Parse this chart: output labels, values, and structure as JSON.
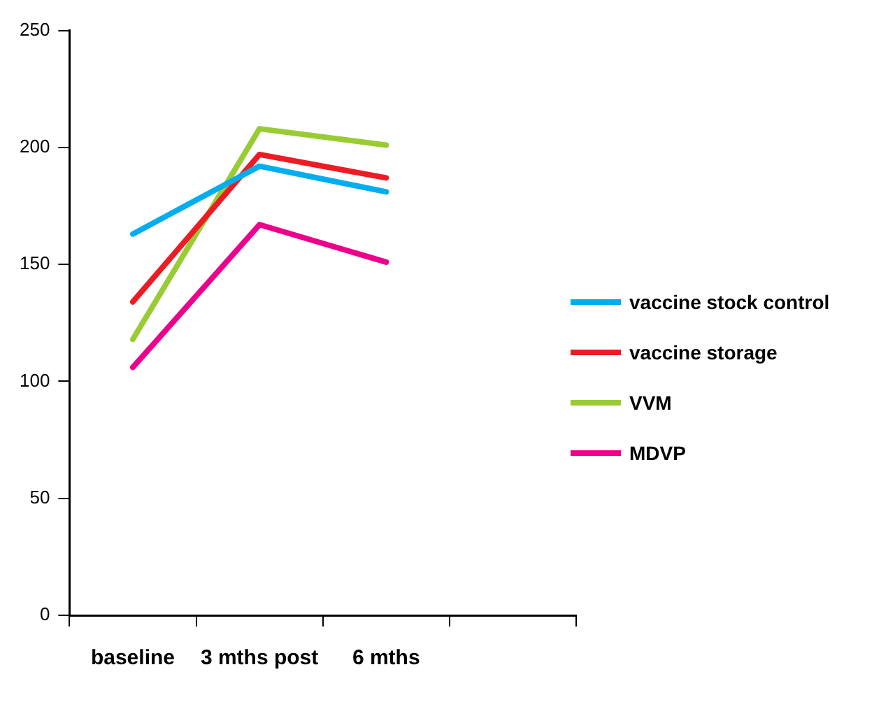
{
  "chart_data": {
    "type": "line",
    "categories": [
      "baseline",
      "3 mths post",
      "6 mths",
      null
    ],
    "series": [
      {
        "name": "vaccine stock control",
        "color": "#00aeef",
        "values": [
          163,
          192,
          181,
          null
        ]
      },
      {
        "name": "vaccine storage",
        "color": "#ed1c24",
        "values": [
          134,
          197,
          187,
          null
        ]
      },
      {
        "name": "VVM",
        "color": "#99cc33",
        "values": [
          118,
          208,
          201,
          null
        ]
      },
      {
        "name": "MDVP",
        "color": "#ec008c",
        "values": [
          106,
          167,
          151,
          null
        ]
      }
    ],
    "ylim": [
      0,
      250
    ],
    "yticks": [
      0,
      50,
      100,
      150,
      200,
      250
    ],
    "grid": false,
    "legend": "right",
    "marker": "none",
    "line_style": "solid"
  }
}
